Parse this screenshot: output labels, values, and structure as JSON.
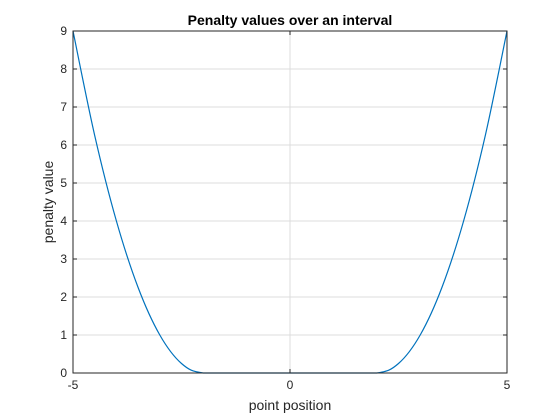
{
  "chart_data": {
    "type": "line",
    "title": "Penalty values over an interval",
    "xlabel": "point position",
    "ylabel": "penalty value",
    "xlim": [
      -5,
      5
    ],
    "ylim": [
      0,
      9
    ],
    "x_ticks": [
      -5,
      0,
      5
    ],
    "y_ticks": [
      0,
      1,
      2,
      3,
      4,
      5,
      6,
      7,
      8,
      9
    ],
    "grid": true,
    "series": [
      {
        "color": "#0072BD",
        "x": [
          -5,
          -4.5,
          -4,
          -3.5,
          -3,
          -2.5,
          -2,
          -1,
          0,
          1,
          2,
          2.5,
          3,
          3.5,
          4,
          4.5,
          5
        ],
        "y": [
          9,
          6.25,
          4,
          2.25,
          1,
          0.25,
          0,
          0,
          0,
          0,
          0,
          0.25,
          1,
          2.25,
          4,
          6.25,
          9
        ]
      }
    ]
  }
}
